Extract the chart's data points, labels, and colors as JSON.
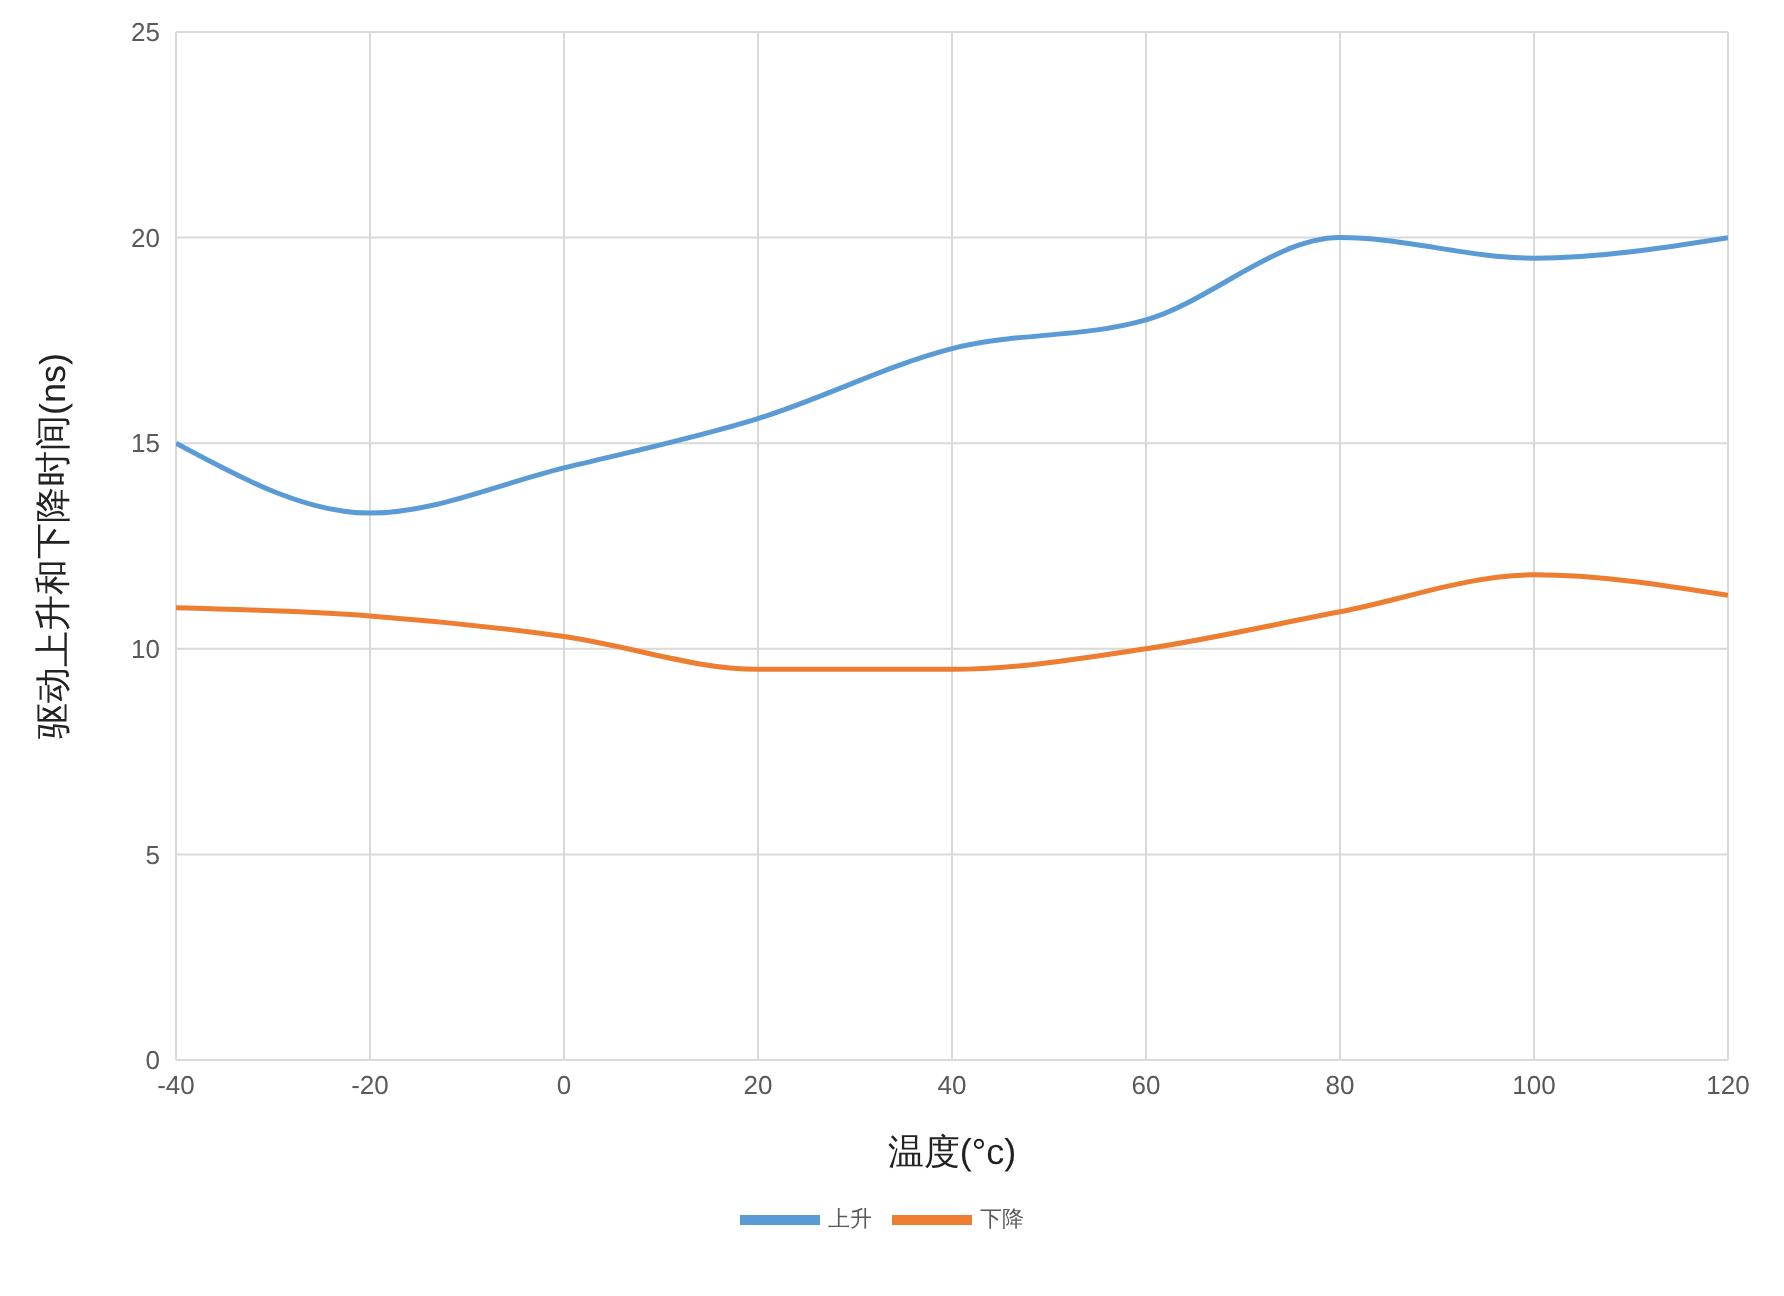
{
  "chart_data": {
    "type": "line",
    "xlabel": "温度(°c)",
    "ylabel": "驱动上升和下降时间(ns)",
    "x": [
      -40,
      -20,
      0,
      20,
      40,
      60,
      80,
      100,
      120
    ],
    "series": [
      {
        "name": "上升",
        "color": "#5b9bd5",
        "values": [
          15,
          13.3,
          14.4,
          15.6,
          17.3,
          18,
          20,
          19.5,
          20
        ]
      },
      {
        "name": "下降",
        "color": "#ed7d31",
        "values": [
          11,
          10.8,
          10.3,
          9.5,
          9.5,
          10,
          10.9,
          11.8,
          11.3
        ]
      }
    ],
    "xlim": [
      -40,
      120
    ],
    "xticks": [
      -40,
      -20,
      0,
      20,
      40,
      60,
      80,
      100,
      120
    ],
    "ylim": [
      0,
      25
    ],
    "yticks": [
      0,
      5,
      10,
      15,
      20,
      25
    ],
    "grid": true,
    "legend": "bottom",
    "marker": "none",
    "line_style": "solid"
  }
}
